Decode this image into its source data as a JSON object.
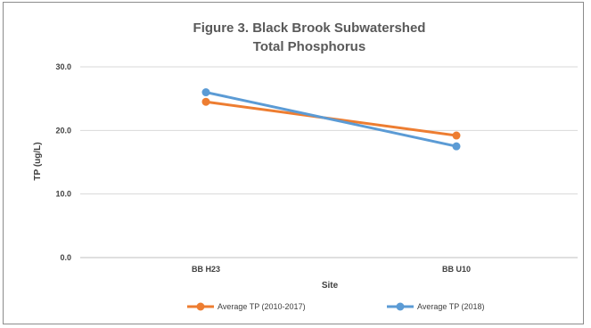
{
  "chart_data": {
    "type": "line",
    "title_line1": "Figure 3. Black Brook Subwatershed",
    "title_line2": "Total Phosphorus",
    "xlabel": "Site",
    "ylabel": "TP (ug/L)",
    "categories": [
      "BB H23",
      "BB U10"
    ],
    "ylim": [
      0,
      30
    ],
    "yticks": [
      "0.0",
      "10.0",
      "20.0",
      "30.0"
    ],
    "grid": true,
    "legend_position": "bottom",
    "series": [
      {
        "name": "Average TP (2010-2017)",
        "values": [
          24.5,
          19.2
        ],
        "color": "#ed7d31"
      },
      {
        "name": "Average TP (2018)",
        "values": [
          26.0,
          17.5
        ],
        "color": "#5b9bd5"
      }
    ]
  },
  "colors": {
    "gridline": "#d9d9d9",
    "axis": "#bfbfbf",
    "border": "#8c8c8c"
  }
}
